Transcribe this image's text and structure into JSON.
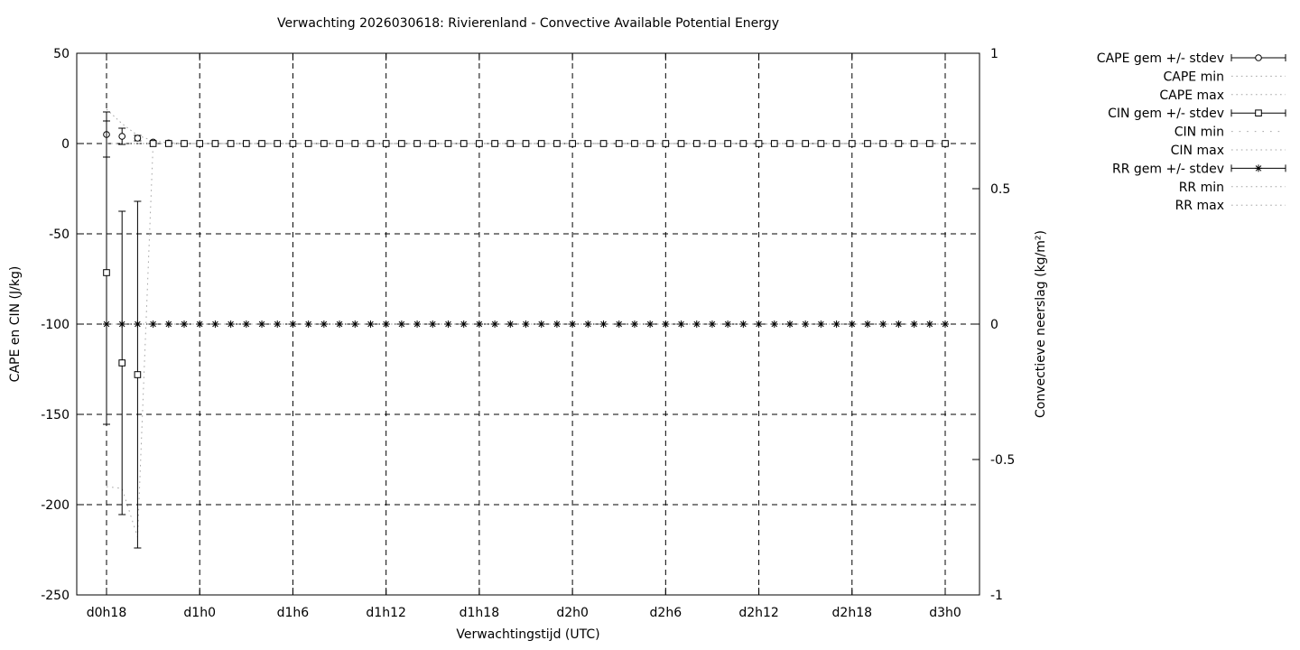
{
  "title": "Verwachting 2026030618: Rivierenland - Convective Available Potential Energy",
  "axes": {
    "x": {
      "label": "Verwachtingstijd (UTC)",
      "tick_labels": [
        "d0h18",
        "d1h0",
        "d1h6",
        "d1h12",
        "d1h18",
        "d2h0",
        "d2h6",
        "d2h12",
        "d2h18",
        "d3h0"
      ],
      "tick_hours": [
        0,
        6,
        12,
        18,
        24,
        30,
        36,
        42,
        48,
        54
      ]
    },
    "y_left": {
      "label": "CAPE en CIN (J/kg)",
      "tick_labels": [
        "50",
        "0",
        "-50",
        "-100",
        "-150",
        "-200",
        "-250"
      ],
      "tick_values": [
        50,
        0,
        -50,
        -100,
        -150,
        -200,
        -250
      ],
      "range": [
        50,
        -250
      ]
    },
    "y_right": {
      "label": "Convectieve neerslag (kg/m²)",
      "tick_labels": [
        "1",
        "0.5",
        "0",
        "-0.5",
        "-1"
      ],
      "tick_values": [
        1,
        0.5,
        0,
        -0.5,
        -1
      ],
      "range": [
        1,
        -1
      ]
    }
  },
  "legend": [
    {
      "label": "CAPE gem +/- stdev",
      "style": "errorbar",
      "marker": "circle"
    },
    {
      "label": "CAPE min",
      "style": "dotted"
    },
    {
      "label": "CAPE max",
      "style": "dotted"
    },
    {
      "label": "CIN gem +/- stdev",
      "style": "errorbar",
      "marker": "square"
    },
    {
      "label": "CIN min",
      "style": "dotted-sparse"
    },
    {
      "label": "CIN max",
      "style": "dotted"
    },
    {
      "label": "RR gem +/- stdev",
      "style": "errorbar",
      "marker": "asterisk"
    },
    {
      "label": "RR min",
      "style": "dotted"
    },
    {
      "label": "RR max",
      "style": "dotted"
    }
  ],
  "colors": {
    "foreground": "#000000",
    "dotted_gray": "#a6a6a6",
    "background": "#ffffff"
  },
  "chart_data": {
    "type": "line",
    "subtype": "errorbars-with-min-max",
    "x_description": "forecast time, hourly steps from d0h18 to d3h0 (55 points)",
    "n_points": 55,
    "x_start_hour": 0,
    "x_step_hours": 1,
    "x_tick_hours": [
      0,
      6,
      12,
      18,
      24,
      30,
      36,
      42,
      48,
      54
    ],
    "x_tick_labels": [
      "d0h18",
      "d1h0",
      "d1h6",
      "d1h12",
      "d1h18",
      "d2h0",
      "d2h6",
      "d2h12",
      "d2h18",
      "d3h0"
    ],
    "y_left_range": [
      50,
      -250
    ],
    "y_right_range": [
      1,
      -1
    ],
    "grid": true,
    "legend_position": "outside-top-right",
    "series_note": "each series lists leading non-zero values in 'prefix'; all remaining points equal 'fill'",
    "series": [
      {
        "name": "CAPE gem",
        "axis": "left",
        "marker": "circle",
        "prefix": [
          5,
          4,
          3,
          0.8,
          0.3
        ],
        "fill": 0
      },
      {
        "name": "CAPE stdev",
        "axis": "left",
        "role": "stdev-of-CAPE-gem",
        "prefix": [
          12.5,
          4.5,
          1.5,
          0.4,
          0.2
        ],
        "fill": 0
      },
      {
        "name": "CAPE min",
        "axis": "left",
        "style": "dotted",
        "prefix": [],
        "fill": 0
      },
      {
        "name": "CAPE max",
        "axis": "left",
        "style": "dotted",
        "prefix": [
          19,
          11,
          4.5,
          1.5,
          0.5
        ],
        "fill": 0
      },
      {
        "name": "CIN gem",
        "axis": "left",
        "marker": "square",
        "prefix": [
          -71.5,
          -121.5,
          -128
        ],
        "fill": 0
      },
      {
        "name": "CIN stdev",
        "axis": "left",
        "role": "stdev-of-CIN-gem",
        "prefix": [
          84,
          84,
          96
        ],
        "fill": 0
      },
      {
        "name": "CIN min",
        "axis": "left",
        "style": "dotted",
        "prefix": [
          -190,
          -191,
          -218
        ],
        "fill": 0
      },
      {
        "name": "CIN max",
        "axis": "left",
        "style": "dotted",
        "prefix": [],
        "fill": 0
      },
      {
        "name": "RR gem",
        "axis": "right",
        "marker": "asterisk",
        "prefix": [],
        "fill": 0
      },
      {
        "name": "RR stdev",
        "axis": "right",
        "role": "stdev-of-RR-gem",
        "prefix": [],
        "fill": 0
      },
      {
        "name": "RR min",
        "axis": "right",
        "style": "dotted",
        "prefix": [],
        "fill": 0
      },
      {
        "name": "RR max",
        "axis": "right",
        "style": "dotted",
        "prefix": [],
        "fill": 0
      }
    ]
  }
}
